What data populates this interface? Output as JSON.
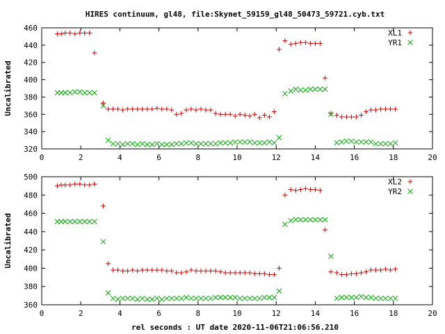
{
  "title": "HIRES continuum, gl48, file:Skynet_59159_gl48_50473_59721.cyb.txt",
  "xlabel": "rel seconds : UT date 2020-11-06T21:06:56.210",
  "colors": {
    "xl": "#cc0000",
    "yr": "#00aa00"
  },
  "chart_data": [
    {
      "type": "scatter",
      "ylabel": "Uncalibrated",
      "xlim": [
        0,
        20
      ],
      "ylim": [
        320,
        460
      ],
      "xticks": [
        0,
        2,
        4,
        6,
        8,
        10,
        12,
        14,
        16,
        18,
        20
      ],
      "yticks": [
        320,
        340,
        360,
        380,
        400,
        420,
        440,
        460
      ],
      "legend_position": "top-right",
      "series": [
        {
          "name": "XL1",
          "marker": "plus",
          "color": "#cc0000",
          "x": [
            0.8,
            1.0,
            1.2,
            1.45,
            1.7,
            1.95,
            2.2,
            2.45,
            2.7,
            3.15,
            3.4,
            3.65,
            3.9,
            4.15,
            4.4,
            4.65,
            4.9,
            5.15,
            5.4,
            5.65,
            5.9,
            6.15,
            6.4,
            6.65,
            6.9,
            7.15,
            7.4,
            7.65,
            7.9,
            8.15,
            8.4,
            8.65,
            8.9,
            9.15,
            9.4,
            9.65,
            9.9,
            10.15,
            10.4,
            10.65,
            10.9,
            11.15,
            11.4,
            11.65,
            11.9,
            12.15,
            12.45,
            12.75,
            13.0,
            13.25,
            13.5,
            13.75,
            14.0,
            14.25,
            14.5,
            14.8,
            15.1,
            15.35,
            15.6,
            15.85,
            16.1,
            16.35,
            16.6,
            16.85,
            17.1,
            17.35,
            17.6,
            17.85,
            18.1
          ],
          "y": [
            453,
            453,
            454,
            454,
            453,
            454,
            454,
            454,
            431,
            373,
            366,
            366,
            366,
            365,
            366,
            366,
            366,
            366,
            366,
            366,
            367,
            366,
            366,
            365,
            360,
            361,
            365,
            366,
            365,
            366,
            365,
            365,
            361,
            360,
            360,
            360,
            358,
            360,
            359,
            358,
            360,
            356,
            359,
            357,
            363,
            435,
            445,
            441,
            442,
            443,
            443,
            442,
            442,
            442,
            402,
            361,
            359,
            357,
            357,
            357,
            357,
            359,
            363,
            365,
            365,
            366,
            366,
            366,
            366
          ]
        },
        {
          "name": "YR1",
          "marker": "cross",
          "color": "#00aa00",
          "x": [
            0.8,
            1.0,
            1.2,
            1.45,
            1.7,
            1.95,
            2.2,
            2.45,
            2.7,
            3.15,
            3.4,
            3.65,
            3.9,
            4.15,
            4.4,
            4.65,
            4.9,
            5.15,
            5.4,
            5.65,
            5.9,
            6.15,
            6.4,
            6.65,
            6.9,
            7.15,
            7.4,
            7.65,
            7.9,
            8.15,
            8.4,
            8.65,
            8.9,
            9.15,
            9.4,
            9.65,
            9.9,
            10.15,
            10.4,
            10.65,
            10.9,
            11.15,
            11.4,
            11.65,
            11.9,
            12.15,
            12.45,
            12.75,
            13.0,
            13.25,
            13.5,
            13.75,
            14.0,
            14.25,
            14.5,
            14.8,
            15.1,
            15.35,
            15.6,
            15.85,
            16.1,
            16.35,
            16.6,
            16.85,
            17.1,
            17.35,
            17.6,
            17.85,
            18.1
          ],
          "y": [
            385,
            385,
            385,
            385,
            386,
            386,
            385,
            385,
            385,
            370,
            330,
            326,
            326,
            325,
            326,
            326,
            325,
            326,
            325,
            325,
            326,
            325,
            325,
            325,
            326,
            326,
            327,
            327,
            326,
            326,
            326,
            326,
            326,
            327,
            327,
            327,
            328,
            328,
            328,
            328,
            327,
            327,
            327,
            328,
            327,
            333,
            384,
            387,
            389,
            388,
            388,
            389,
            389,
            389,
            389,
            360,
            327,
            328,
            329,
            329,
            328,
            328,
            328,
            328,
            326,
            326,
            326,
            326,
            327
          ]
        }
      ]
    },
    {
      "type": "scatter",
      "ylabel": "Uncalibrated",
      "xlim": [
        0,
        20
      ],
      "ylim": [
        360,
        500
      ],
      "xticks": [
        0,
        2,
        4,
        6,
        8,
        10,
        12,
        14,
        16,
        18,
        20
      ],
      "yticks": [
        360,
        380,
        400,
        420,
        440,
        460,
        480,
        500
      ],
      "legend_position": "top-right",
      "series": [
        {
          "name": "XL2",
          "marker": "plus",
          "color": "#cc0000",
          "x": [
            0.8,
            1.0,
            1.2,
            1.45,
            1.7,
            1.95,
            2.2,
            2.45,
            2.7,
            3.15,
            3.4,
            3.65,
            3.9,
            4.15,
            4.4,
            4.65,
            4.9,
            5.15,
            5.4,
            5.65,
            5.9,
            6.15,
            6.4,
            6.65,
            6.9,
            7.15,
            7.4,
            7.65,
            7.9,
            8.15,
            8.4,
            8.65,
            8.9,
            9.15,
            9.4,
            9.65,
            9.9,
            10.15,
            10.4,
            10.65,
            10.9,
            11.15,
            11.4,
            11.65,
            11.9,
            12.15,
            12.45,
            12.75,
            13.0,
            13.25,
            13.5,
            13.75,
            14.0,
            14.25,
            14.5,
            14.8,
            15.1,
            15.35,
            15.6,
            15.85,
            16.1,
            16.35,
            16.6,
            16.85,
            17.1,
            17.35,
            17.6,
            17.85,
            18.1
          ],
          "y": [
            490,
            491,
            491,
            491,
            492,
            492,
            491,
            491,
            492,
            468,
            405,
            398,
            398,
            397,
            397,
            398,
            397,
            398,
            398,
            398,
            398,
            398,
            397,
            397,
            395,
            395,
            396,
            398,
            397,
            397,
            397,
            397,
            397,
            396,
            395,
            395,
            395,
            395,
            395,
            395,
            394,
            394,
            394,
            393,
            393,
            400,
            480,
            486,
            485,
            486,
            487,
            486,
            486,
            485,
            442,
            396,
            395,
            393,
            393,
            394,
            394,
            395,
            396,
            398,
            398,
            398,
            399,
            398,
            399
          ]
        },
        {
          "name": "YR2",
          "marker": "cross",
          "color": "#00aa00",
          "x": [
            0.8,
            1.0,
            1.2,
            1.45,
            1.7,
            1.95,
            2.2,
            2.45,
            2.7,
            3.15,
            3.4,
            3.65,
            3.9,
            4.15,
            4.4,
            4.65,
            4.9,
            5.15,
            5.4,
            5.65,
            5.9,
            6.15,
            6.4,
            6.65,
            6.9,
            7.15,
            7.4,
            7.65,
            7.9,
            8.15,
            8.4,
            8.65,
            8.9,
            9.15,
            9.4,
            9.65,
            9.9,
            10.15,
            10.4,
            10.65,
            10.9,
            11.15,
            11.4,
            11.65,
            11.9,
            12.15,
            12.45,
            12.75,
            13.0,
            13.25,
            13.5,
            13.75,
            14.0,
            14.25,
            14.5,
            14.8,
            15.1,
            15.35,
            15.6,
            15.85,
            16.1,
            16.35,
            16.6,
            16.85,
            17.1,
            17.35,
            17.6,
            17.85,
            18.1
          ],
          "y": [
            451,
            451,
            451,
            451,
            451,
            451,
            451,
            451,
            451,
            429,
            373,
            367,
            366,
            367,
            367,
            367,
            366,
            367,
            366,
            366,
            367,
            366,
            367,
            367,
            367,
            367,
            368,
            367,
            367,
            367,
            367,
            367,
            368,
            368,
            368,
            368,
            368,
            367,
            367,
            367,
            367,
            367,
            368,
            368,
            368,
            375,
            448,
            452,
            453,
            453,
            453,
            453,
            453,
            453,
            453,
            413,
            367,
            368,
            368,
            368,
            368,
            369,
            368,
            368,
            367,
            367,
            367,
            367,
            367
          ]
        }
      ]
    }
  ]
}
